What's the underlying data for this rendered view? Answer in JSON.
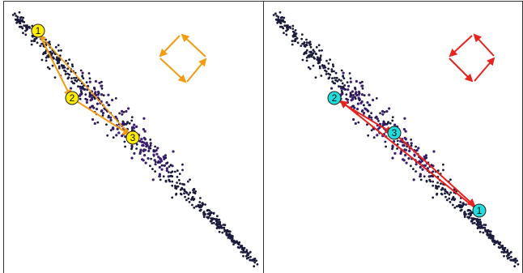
{
  "colors": {
    "frame": "#333333",
    "point": "#1a1a3a",
    "cluster": "#3b1d6e",
    "left_path": "#f39c12",
    "right_path": "#e8231f",
    "marker_left": "#ffee00",
    "marker_right": "#22dddd",
    "marker_stroke": "#222222"
  },
  "panels": [
    {
      "id": "left",
      "path_style": "orange-arrows",
      "markers": [
        {
          "label": "1"
        },
        {
          "label": "2"
        },
        {
          "label": "3"
        }
      ],
      "cycle_icon": "rotating-arrows-icon"
    },
    {
      "id": "right",
      "path_style": "red-arrows",
      "markers": [
        {
          "label": "2"
        },
        {
          "label": "3"
        },
        {
          "label": "1"
        }
      ],
      "cycle_icon": "rotating-arrows-icon"
    }
  ]
}
